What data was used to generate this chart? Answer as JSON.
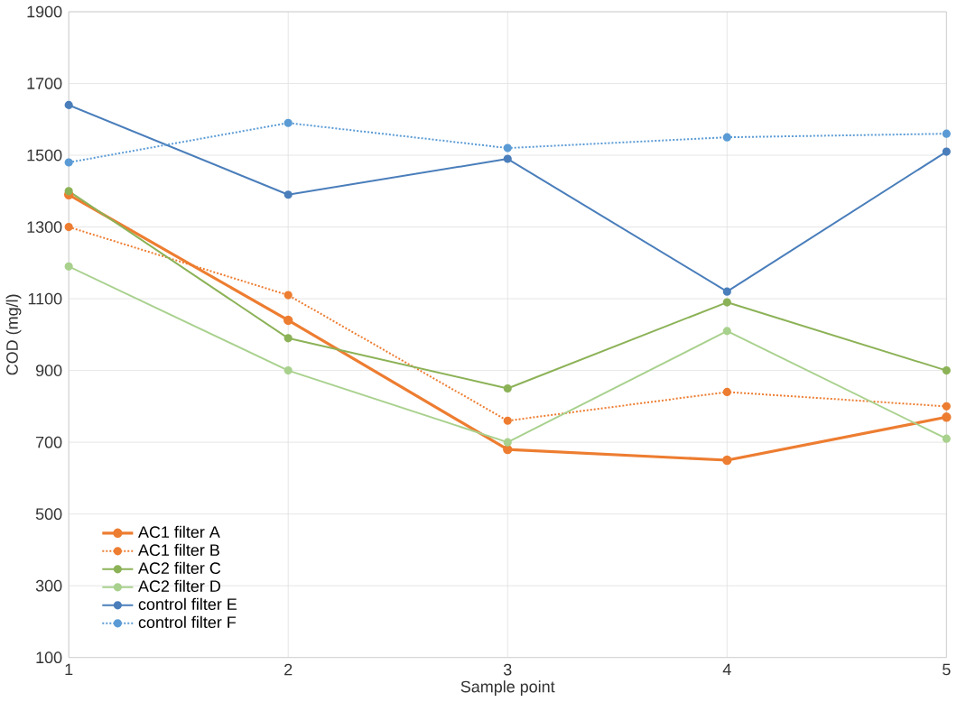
{
  "chart_data": {
    "type": "line",
    "xlabel": "Sample point",
    "ylabel": "COD (mg/l)",
    "x": [
      1,
      2,
      3,
      4,
      5
    ],
    "xlim": [
      1,
      5
    ],
    "xticks": [
      1,
      2,
      3,
      4,
      5
    ],
    "ylim": [
      100,
      1900
    ],
    "yticks": [
      100,
      300,
      500,
      700,
      900,
      1100,
      1300,
      1500,
      1700,
      1900
    ],
    "grid": true,
    "legend": "bottom left",
    "marker": "circle",
    "series": [
      {
        "name": "AC1 filter A",
        "color": "#ed7d31",
        "line_style": "solid",
        "values": [
          1390,
          1040,
          680,
          650,
          770
        ]
      },
      {
        "name": "AC1 filter B",
        "color": "#ed7d31",
        "line_style": "dotted",
        "values": [
          1300,
          1110,
          760,
          840,
          800
        ]
      },
      {
        "name": "AC2 filter C",
        "color": "#8cb257",
        "line_style": "solid",
        "values": [
          1400,
          990,
          850,
          1090,
          900
        ]
      },
      {
        "name": "AC2 filter D",
        "color": "#a9d18e",
        "line_style": "solid",
        "values": [
          1190,
          900,
          700,
          1010,
          710
        ]
      },
      {
        "name": "control filter E",
        "color": "#4a7ebb",
        "line_style": "solid",
        "values": [
          1640,
          1390,
          1490,
          1120,
          1510
        ]
      },
      {
        "name": "control filter F",
        "color": "#5b9bd5",
        "line_style": "dotted",
        "values": [
          1480,
          1590,
          1520,
          1550,
          1560
        ]
      }
    ]
  }
}
